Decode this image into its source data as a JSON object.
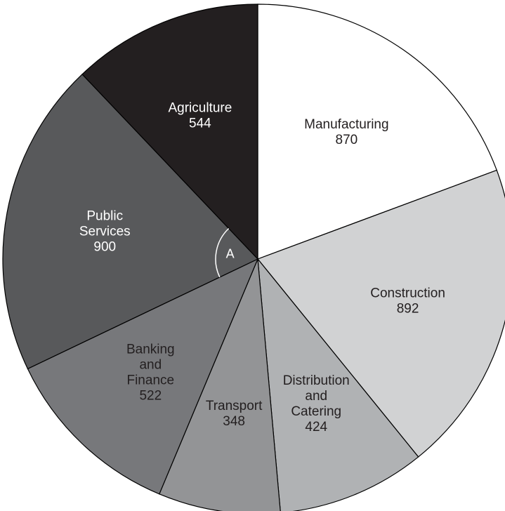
{
  "chart_data": {
    "type": "pie",
    "start_angle_deg": 0,
    "direction": "clockwise",
    "slices": [
      {
        "label_lines": [
          "Manufacturing"
        ],
        "value": 870,
        "value_text": "870",
        "color": "#ffffff",
        "text_color": "#231f20"
      },
      {
        "label_lines": [
          "Construction"
        ],
        "value": 892,
        "value_text": "892",
        "color": "#d1d2d3",
        "text_color": "#231f20"
      },
      {
        "label_lines": [
          "Distribution",
          "and",
          "Catering"
        ],
        "value": 424,
        "value_text": "424",
        "color": "#b0b2b4",
        "text_color": "#231f20"
      },
      {
        "label_lines": [
          "Transport"
        ],
        "value": 348,
        "value_text": "348",
        "color": "#939496",
        "text_color": "#231f20"
      },
      {
        "label_lines": [
          "Banking",
          "and",
          "Finance"
        ],
        "value": 522,
        "value_text": "522",
        "color": "#77787b",
        "text_color": "#231f20"
      },
      {
        "label_lines": [
          "Public",
          "Services"
        ],
        "value": 900,
        "value_text": "900",
        "color": "#58595b",
        "text_color": "#ffffff"
      },
      {
        "label_lines": [
          "Agriculture"
        ],
        "value": 544,
        "value_text": "544",
        "color": "#231f20",
        "text_color": "#ffffff"
      }
    ],
    "angle_marker": {
      "label": "A",
      "slice_index": 5,
      "color": "#ffffff"
    }
  }
}
